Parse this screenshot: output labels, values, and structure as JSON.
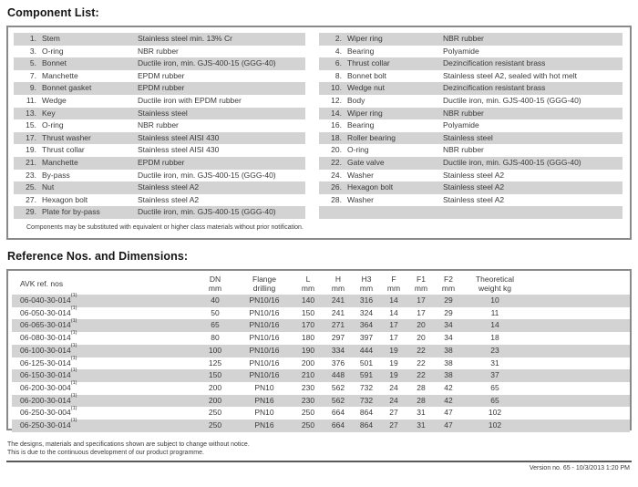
{
  "page": {
    "component_list_title": "Component List:",
    "component_note": "Components may be substituted with equivalent or higher class materials without prior notification.",
    "reference_title": "Reference Nos. and Dimensions:",
    "footer_line1": "The designs, materials and specifications shown are subject to change without notice.",
    "footer_line2": "This is due to the continuous development of our product programme.",
    "version_text": "Version no. 65 - 10/3/2013 1:20 PM"
  },
  "colors": {
    "row_shade": "#d3d3d3",
    "box_border": "#8a8a8a",
    "text": "#3a3a3a"
  },
  "components": {
    "rows": [
      {
        "left_no": "1.",
        "left_name": "Stem",
        "left_material": "Stainless steel min. 13% Cr",
        "right_no": "2.",
        "right_name": "Wiper ring",
        "right_material": "NBR rubber"
      },
      {
        "left_no": "3.",
        "left_name": "O-ring",
        "left_material": "NBR rubber",
        "right_no": "4.",
        "right_name": "Bearing",
        "right_material": "Polyamide"
      },
      {
        "left_no": "5.",
        "left_name": "Bonnet",
        "left_material": "Ductile iron, min. GJS-400-15 (GGG-40)",
        "right_no": "6.",
        "right_name": "Thrust collar",
        "right_material": "Dezincification resistant brass"
      },
      {
        "left_no": "7.",
        "left_name": "Manchette",
        "left_material": "EPDM rubber",
        "right_no": "8.",
        "right_name": "Bonnet bolt",
        "right_material": "Stainless steel A2, sealed with hot melt"
      },
      {
        "left_no": "9.",
        "left_name": "Bonnet gasket",
        "left_material": "EPDM rubber",
        "right_no": "10.",
        "right_name": "Wedge nut",
        "right_material": "Dezincification resistant brass"
      },
      {
        "left_no": "11.",
        "left_name": "Wedge",
        "left_material": "Ductile iron with EPDM rubber",
        "right_no": "12.",
        "right_name": "Body",
        "right_material": "Ductile iron, min. GJS-400-15 (GGG-40)"
      },
      {
        "left_no": "13.",
        "left_name": "Key",
        "left_material": "Stainless steel",
        "right_no": "14.",
        "right_name": "Wiper ring",
        "right_material": "NBR rubber"
      },
      {
        "left_no": "15.",
        "left_name": "O-ring",
        "left_material": "NBR rubber",
        "right_no": "16.",
        "right_name": "Bearing",
        "right_material": "Polyamide"
      },
      {
        "left_no": "17.",
        "left_name": "Thrust washer",
        "left_material": "Stainless steel AISI 430",
        "right_no": "18.",
        "right_name": "Roller bearing",
        "right_material": "Stainless steel"
      },
      {
        "left_no": "19.",
        "left_name": "Thrust collar",
        "left_material": "Stainless steel AISI 430",
        "right_no": "20.",
        "right_name": "O-ring",
        "right_material": "NBR rubber"
      },
      {
        "left_no": "21.",
        "left_name": "Manchette",
        "left_material": "EPDM rubber",
        "right_no": "22.",
        "right_name": "Gate valve",
        "right_material": "Ductile iron, min. GJS-400-15 (GGG-40)"
      },
      {
        "left_no": "23.",
        "left_name": "By-pass",
        "left_material": "Ductile iron, min. GJS-400-15 (GGG-40)",
        "right_no": "24.",
        "right_name": "Washer",
        "right_material": "Stainless steel A2"
      },
      {
        "left_no": "25.",
        "left_name": "Nut",
        "left_material": "Stainless steel A2",
        "right_no": "26.",
        "right_name": "Hexagon bolt",
        "right_material": "Stainless steel A2"
      },
      {
        "left_no": "27.",
        "left_name": "Hexagon bolt",
        "left_material": "Stainless steel A2",
        "right_no": "28.",
        "right_name": "Washer",
        "right_material": "Stainless steel A2"
      },
      {
        "left_no": "29.",
        "left_name": "Plate for by-pass",
        "left_material": "Ductile iron, min. GJS-400-15 (GGG-40)",
        "right_no": "",
        "right_name": "",
        "right_material": ""
      }
    ]
  },
  "dimensions": {
    "footnote_marker": "(1)",
    "headers": [
      {
        "key": "ref",
        "line1": "AVK ref. nos",
        "line2": ""
      },
      {
        "key": "dn",
        "line1": "DN",
        "line2": "mm"
      },
      {
        "key": "flange",
        "line1": "Flange",
        "line2": "drilling"
      },
      {
        "key": "l",
        "line1": "L",
        "line2": "mm"
      },
      {
        "key": "h",
        "line1": "H",
        "line2": "mm"
      },
      {
        "key": "h3",
        "line1": "H3",
        "line2": "mm"
      },
      {
        "key": "f",
        "line1": "F",
        "line2": "mm"
      },
      {
        "key": "f1",
        "line1": "F1",
        "line2": "mm"
      },
      {
        "key": "f2",
        "line1": "F2",
        "line2": "mm"
      },
      {
        "key": "weight",
        "line1": "Theoretical",
        "line2": "weight kg"
      }
    ],
    "rows": [
      {
        "ref": "06-040-30-014",
        "dn": "40",
        "flange": "PN10/16",
        "l": "140",
        "h": "241",
        "h3": "316",
        "f": "14",
        "f1": "17",
        "f2": "29",
        "weight": "10"
      },
      {
        "ref": "06-050-30-014",
        "dn": "50",
        "flange": "PN10/16",
        "l": "150",
        "h": "241",
        "h3": "324",
        "f": "14",
        "f1": "17",
        "f2": "29",
        "weight": "11"
      },
      {
        "ref": "06-065-30-014",
        "dn": "65",
        "flange": "PN10/16",
        "l": "170",
        "h": "271",
        "h3": "364",
        "f": "17",
        "f1": "20",
        "f2": "34",
        "weight": "14"
      },
      {
        "ref": "06-080-30-014",
        "dn": "80",
        "flange": "PN10/16",
        "l": "180",
        "h": "297",
        "h3": "397",
        "f": "17",
        "f1": "20",
        "f2": "34",
        "weight": "18"
      },
      {
        "ref": "06-100-30-014",
        "dn": "100",
        "flange": "PN10/16",
        "l": "190",
        "h": "334",
        "h3": "444",
        "f": "19",
        "f1": "22",
        "f2": "38",
        "weight": "23"
      },
      {
        "ref": "06-125-30-014",
        "dn": "125",
        "flange": "PN10/16",
        "l": "200",
        "h": "376",
        "h3": "501",
        "f": "19",
        "f1": "22",
        "f2": "38",
        "weight": "31"
      },
      {
        "ref": "06-150-30-014",
        "dn": "150",
        "flange": "PN10/16",
        "l": "210",
        "h": "448",
        "h3": "591",
        "f": "19",
        "f1": "22",
        "f2": "38",
        "weight": "37"
      },
      {
        "ref": "06-200-30-004",
        "dn": "200",
        "flange": "PN10",
        "l": "230",
        "h": "562",
        "h3": "732",
        "f": "24",
        "f1": "28",
        "f2": "42",
        "weight": "65"
      },
      {
        "ref": "06-200-30-014",
        "dn": "200",
        "flange": "PN16",
        "l": "230",
        "h": "562",
        "h3": "732",
        "f": "24",
        "f1": "28",
        "f2": "42",
        "weight": "65"
      },
      {
        "ref": "06-250-30-004",
        "dn": "250",
        "flange": "PN10",
        "l": "250",
        "h": "664",
        "h3": "864",
        "f": "27",
        "f1": "31",
        "f2": "47",
        "weight": "102"
      },
      {
        "ref": "06-250-30-014",
        "dn": "250",
        "flange": "PN16",
        "l": "250",
        "h": "664",
        "h3": "864",
        "f": "27",
        "f1": "31",
        "f2": "47",
        "weight": "102"
      }
    ]
  }
}
